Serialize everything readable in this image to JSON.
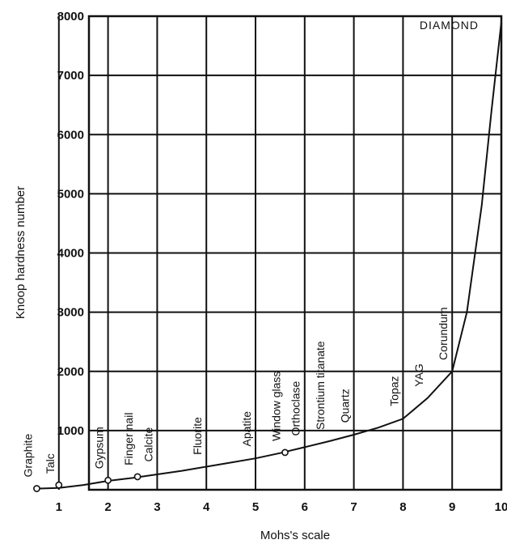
{
  "chart_data": {
    "type": "line",
    "xlabel": "Mohs's scale",
    "ylabel": "Knoop hardness number",
    "xlim": [
      0,
      10
    ],
    "ylim": [
      0,
      8000
    ],
    "x_ticks": [
      "1",
      "2",
      "3",
      "4",
      "5",
      "6",
      "7",
      "8",
      "9",
      "10"
    ],
    "y_ticks": [
      "1000",
      "2000",
      "3000",
      "4000",
      "5000",
      "6000",
      "7000",
      "8000"
    ],
    "grid": true,
    "curve": [
      {
        "x": 0.6,
        "y": 20
      },
      {
        "x": 1.0,
        "y": 30
      },
      {
        "x": 1.5,
        "y": 80
      },
      {
        "x": 2.0,
        "y": 150
      },
      {
        "x": 2.5,
        "y": 200
      },
      {
        "x": 3.0,
        "y": 260
      },
      {
        "x": 3.5,
        "y": 320
      },
      {
        "x": 4.0,
        "y": 390
      },
      {
        "x": 4.5,
        "y": 460
      },
      {
        "x": 5.0,
        "y": 530
      },
      {
        "x": 5.5,
        "y": 620
      },
      {
        "x": 6.0,
        "y": 720
      },
      {
        "x": 6.5,
        "y": 820
      },
      {
        "x": 7.0,
        "y": 930
      },
      {
        "x": 7.5,
        "y": 1050
      },
      {
        "x": 8.0,
        "y": 1200
      },
      {
        "x": 8.5,
        "y": 1550
      },
      {
        "x": 9.0,
        "y": 2000
      },
      {
        "x": 9.3,
        "y": 3000
      },
      {
        "x": 9.6,
        "y": 4800
      },
      {
        "x": 9.8,
        "y": 6400
      },
      {
        "x": 10.0,
        "y": 7900
      }
    ],
    "minerals": [
      {
        "name": "Graphite",
        "x": 0.55,
        "y": 20,
        "marker": true
      },
      {
        "name": "Talc",
        "x": 1.0,
        "y": 80,
        "marker": true
      },
      {
        "name": "Gypsum",
        "x": 2.0,
        "y": 160,
        "marker": true
      },
      {
        "name": "Finger nail",
        "x": 2.6,
        "y": 220,
        "marker": true
      },
      {
        "name": "Calcite",
        "x": 3.0,
        "y": 280,
        "marker": false
      },
      {
        "name": "Fluorite",
        "x": 4.0,
        "y": 400,
        "marker": false
      },
      {
        "name": "Apatite",
        "x": 5.0,
        "y": 540,
        "marker": false
      },
      {
        "name": "Window glass",
        "x": 5.6,
        "y": 630,
        "marker": true
      },
      {
        "name": "Orthoclase",
        "x": 6.0,
        "y": 720,
        "marker": false
      },
      {
        "name": "Strontium titanate",
        "x": 6.5,
        "y": 820,
        "marker": false
      },
      {
        "name": "Quartz",
        "x": 7.0,
        "y": 940,
        "marker": false
      },
      {
        "name": "Topaz",
        "x": 8.0,
        "y": 1220,
        "marker": false
      },
      {
        "name": "YAG",
        "x": 8.5,
        "y": 1550,
        "marker": false
      },
      {
        "name": "Corundum",
        "x": 9.0,
        "y": 2000,
        "marker": false
      },
      {
        "name": "DIAMOND",
        "x": 10.0,
        "y": 7900,
        "marker": false
      }
    ]
  }
}
